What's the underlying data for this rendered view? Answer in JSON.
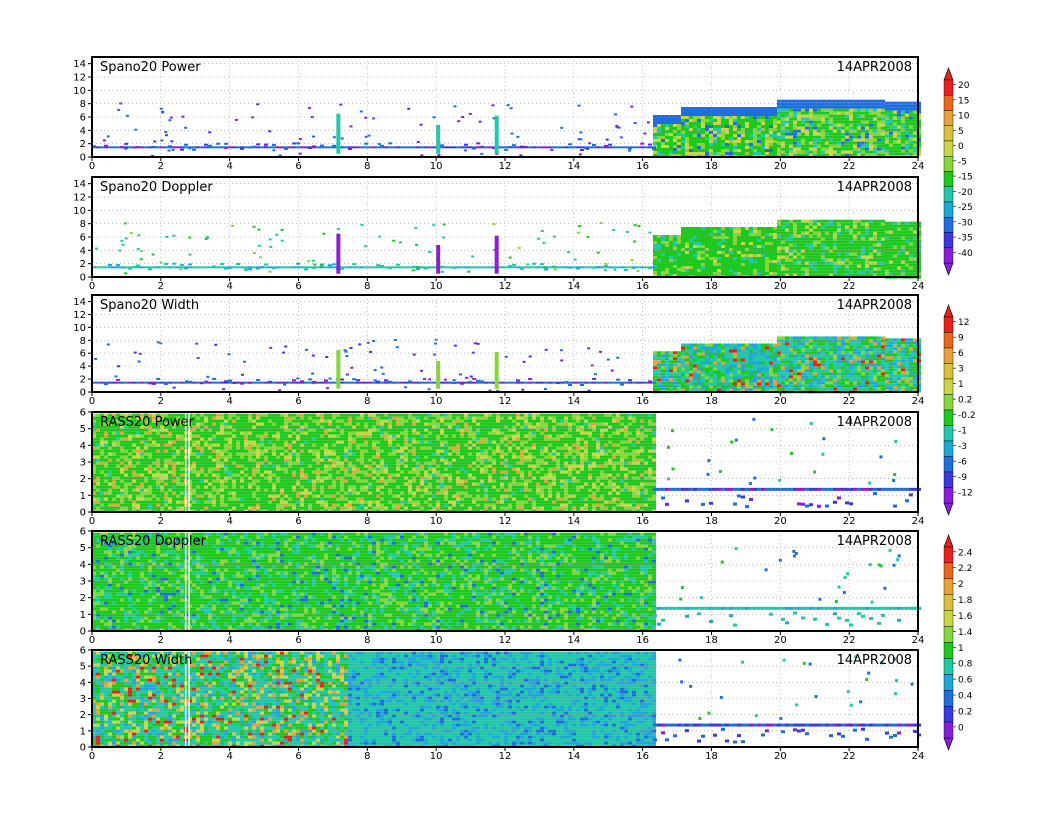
{
  "chart_data": [
    {
      "type": "heatmap",
      "title": "Spano20 Power",
      "date_label": "14APR2008",
      "x_ticks": [
        0,
        2,
        4,
        6,
        8,
        10,
        12,
        14,
        16,
        18,
        20,
        22,
        24
      ],
      "y_ticks": [
        0,
        2,
        4,
        6,
        8,
        10,
        12,
        14
      ],
      "xlim": [
        0,
        24
      ],
      "ylim": [
        0,
        15
      ],
      "grid": true,
      "colorbar_group": "power_doppler",
      "data_regions": [
        {
          "x": [
            16.3,
            24.0
          ],
          "y_top_steps": [
            [
              16.3,
              6.3
            ],
            [
              17.0,
              7.5
            ],
            [
              19.8,
              8.6
            ],
            [
              23.0,
              8.3
            ],
            [
              24.0,
              8.3
            ]
          ],
          "dominant": "green",
          "note_levels": [
            -15,
            -5,
            5
          ]
        }
      ]
    },
    {
      "type": "heatmap",
      "title": "Spano20 Doppler",
      "date_label": "14APR2008",
      "x_ticks": [
        0,
        2,
        4,
        6,
        8,
        10,
        12,
        14,
        16,
        18,
        20,
        22,
        24
      ],
      "y_ticks": [
        0,
        2,
        4,
        6,
        8,
        10,
        12,
        14
      ],
      "xlim": [
        0,
        24
      ],
      "ylim": [
        0,
        15
      ],
      "grid": true,
      "colorbar_group": "power_doppler"
    },
    {
      "type": "heatmap",
      "title": "Spano20 Width",
      "date_label": "14APR2008",
      "x_ticks": [
        0,
        2,
        4,
        6,
        8,
        10,
        12,
        14,
        16,
        18,
        20,
        22,
        24
      ],
      "y_ticks": [
        0,
        2,
        4,
        6,
        8,
        10,
        12,
        14
      ],
      "xlim": [
        0,
        24
      ],
      "ylim": [
        0,
        15
      ],
      "grid": true,
      "colorbar_group": "width_power"
    },
    {
      "type": "heatmap",
      "title": "RASS20 Power",
      "date_label": "14APR2008",
      "x_ticks": [
        0,
        2,
        4,
        6,
        8,
        10,
        12,
        14,
        16,
        18,
        20,
        22,
        24
      ],
      "y_ticks": [
        0,
        1,
        2,
        3,
        4,
        5,
        6
      ],
      "xlim": [
        0,
        24
      ],
      "ylim": [
        0,
        6
      ],
      "grid": true,
      "colorbar_group": "width_power"
    },
    {
      "type": "heatmap",
      "title": "RASS20 Doppler",
      "date_label": "14APR2008",
      "x_ticks": [
        0,
        2,
        4,
        6,
        8,
        10,
        12,
        14,
        16,
        18,
        20,
        22,
        24
      ],
      "y_ticks": [
        0,
        1,
        2,
        3,
        4,
        5,
        6
      ],
      "xlim": [
        0,
        24
      ],
      "ylim": [
        0,
        6
      ],
      "grid": true,
      "colorbar_group": "rass_doppler_width"
    },
    {
      "type": "heatmap",
      "title": "RASS20 Width",
      "date_label": "14APR2008",
      "x_ticks": [
        0,
        2,
        4,
        6,
        8,
        10,
        12,
        14,
        16,
        18,
        20,
        22,
        24
      ],
      "y_ticks": [
        0,
        1,
        2,
        3,
        4,
        5,
        6
      ],
      "xlim": [
        0,
        24
      ],
      "ylim": [
        0,
        6
      ],
      "grid": true,
      "colorbar_group": "rass_doppler_width"
    }
  ],
  "colorbars": [
    {
      "name": "power_doppler",
      "labels": [
        "20",
        "15",
        "10",
        "5",
        "0",
        "-5",
        "-15",
        "-20",
        "-25",
        "-30",
        "-35",
        "-40"
      ],
      "colors": [
        "#e8201e",
        "#e8661e",
        "#e8a23a",
        "#d8c040",
        "#c8d64a",
        "#86d63c",
        "#1ec81e",
        "#22c8a8",
        "#1ea8d8",
        "#1e6ee0",
        "#3c38e0",
        "#8a1ed8"
      ]
    },
    {
      "name": "width_power",
      "labels": [
        "12",
        "9",
        "6",
        "3",
        "1",
        "0.2",
        "-0.2",
        "-1",
        "-3",
        "-6",
        "-9",
        "-12"
      ],
      "colors": [
        "#e8201e",
        "#e8661e",
        "#e8a23a",
        "#d8c040",
        "#c8d64a",
        "#86d63c",
        "#1ec81e",
        "#22c8a8",
        "#1ea8d8",
        "#1e6ee0",
        "#3c38e0",
        "#8a1ed8"
      ]
    },
    {
      "name": "rass_doppler_width",
      "labels": [
        "2.4",
        "2.2",
        "2",
        "1.8",
        "1.6",
        "1.4",
        "1",
        "0.8",
        "0.6",
        "0.4",
        "0.2",
        "0"
      ],
      "colors": [
        "#e8201e",
        "#e8661e",
        "#e8a23a",
        "#d8c040",
        "#c8d64a",
        "#86d63c",
        "#1ec81e",
        "#22c8a8",
        "#1ea8d8",
        "#1e6ee0",
        "#3c38e0",
        "#8a1ed8"
      ]
    }
  ]
}
